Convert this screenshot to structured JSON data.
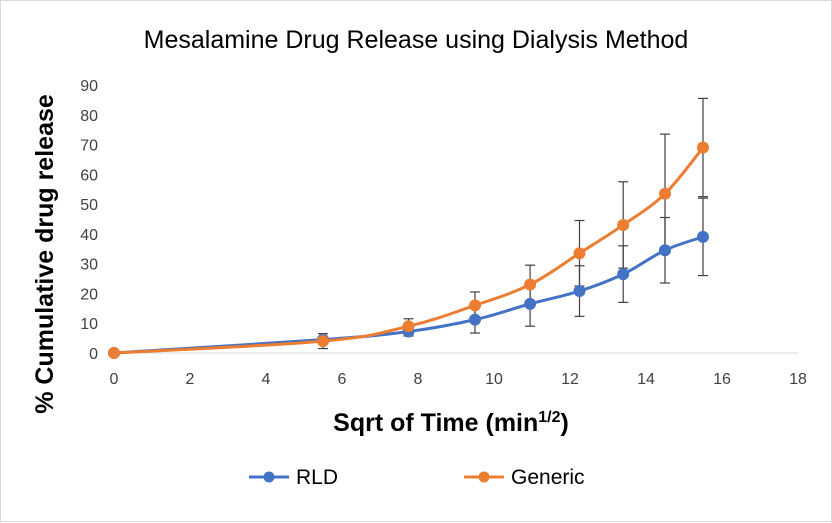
{
  "chart_data": {
    "type": "line",
    "title": "Mesalamine Drug Release using Dialysis Method",
    "xlabel_main": "Sqrt of Time (min",
    "xlabel_sup": "1/2",
    "xlabel_end": ")",
    "ylabel": "% Cumulative drug release",
    "xlim": [
      0,
      18
    ],
    "ylim": [
      0,
      90
    ],
    "x_ticks": [
      "0",
      "2",
      "4",
      "6",
      "8",
      "10",
      "12",
      "14",
      "16",
      "18"
    ],
    "y_ticks": [
      "0",
      "10",
      "20",
      "30",
      "40",
      "50",
      "60",
      "70",
      "80",
      "90"
    ],
    "grid": false,
    "legend_position": "bottom",
    "series": [
      {
        "name": "RLD",
        "color": "#4472C4",
        "x": [
          0,
          5.5,
          7.75,
          9.5,
          10.95,
          12.25,
          13.4,
          14.5,
          15.5
        ],
        "y": [
          0,
          4.5,
          7.2,
          11.2,
          16.5,
          20.8,
          26.5,
          34.5,
          39
        ],
        "error": [
          0,
          0.5,
          1.5,
          4.5,
          7.5,
          8.5,
          9.5,
          11,
          13
        ]
      },
      {
        "name": "Generic",
        "color": "#ED7D31",
        "x": [
          0,
          5.5,
          7.75,
          9.5,
          10.95,
          12.25,
          13.4,
          14.5,
          15.5
        ],
        "y": [
          0,
          4,
          9,
          16,
          23,
          33.5,
          43,
          53.5,
          69
        ],
        "error": [
          0,
          2.5,
          2.5,
          4.5,
          6.5,
          11,
          14.5,
          20,
          16.5
        ]
      }
    ]
  }
}
